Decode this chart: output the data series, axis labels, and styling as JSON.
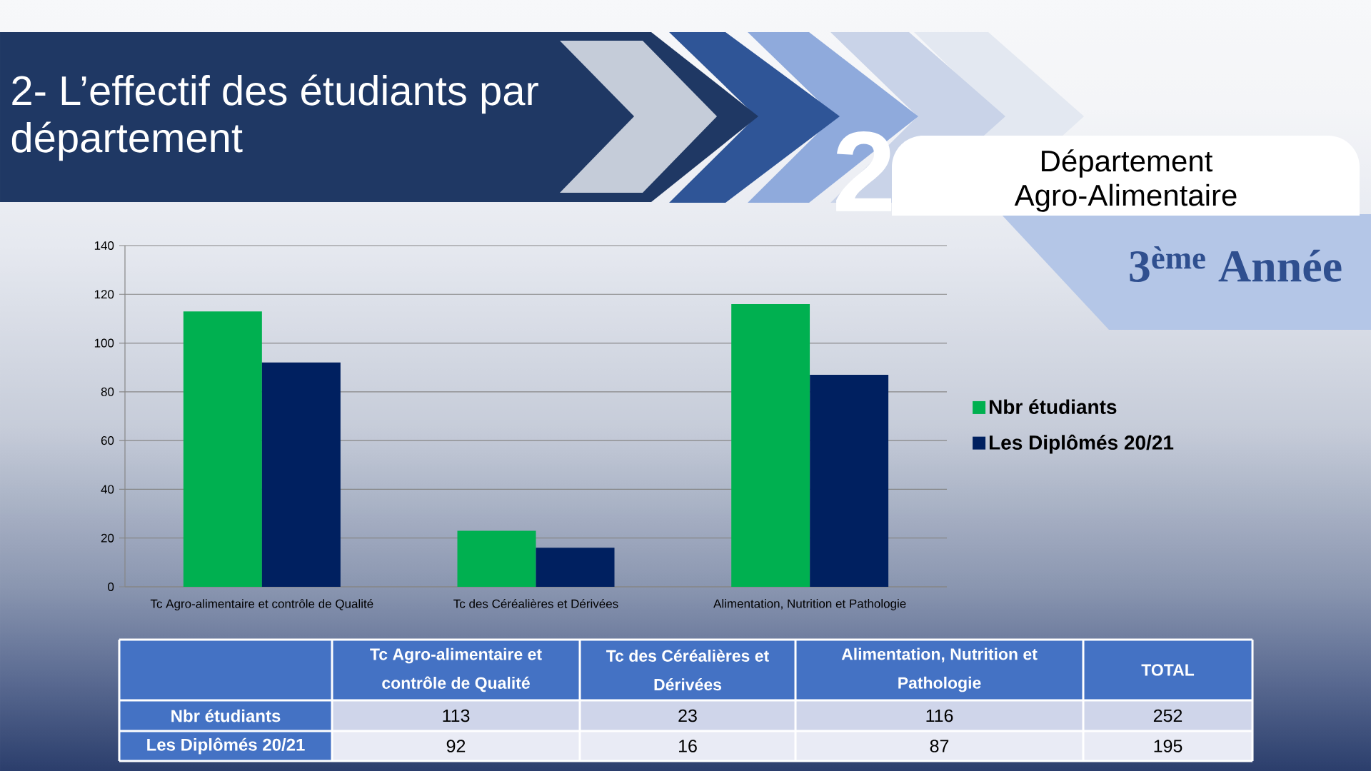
{
  "chart_data": {
    "type": "bar",
    "title": "2- L’effectif des étudiants par département",
    "subtitle": "Département Agro-Alimentaire",
    "annotations": [
      "2",
      "3$^{ème}$ Année",
      "TOTAL",
      "113",
      "23",
      "116",
      "252",
      "92",
      "16",
      "87",
      "195"
    ],
    "categories": [
      "Tc Agro-alimentaire et contrôle de Qualité",
      "Tc des Céréalières et Dérivées",
      "Alimentation, Nutrition et Pathologie"
    ],
    "series": [
      {
        "name": "Nbr étudiants",
        "color": "#00b050",
        "values": [
          113,
          23,
          116
        ]
      },
      {
        "name": "Les Diplômés 20/21",
        "color": "#002060",
        "values": [
          92,
          16,
          87
        ]
      }
    ],
    "ylim": [
      0,
      140
    ],
    "yticks": [
      0,
      20,
      40,
      60,
      80,
      100,
      120,
      140
    ],
    "grid": "y",
    "legend": "right"
  }
}
